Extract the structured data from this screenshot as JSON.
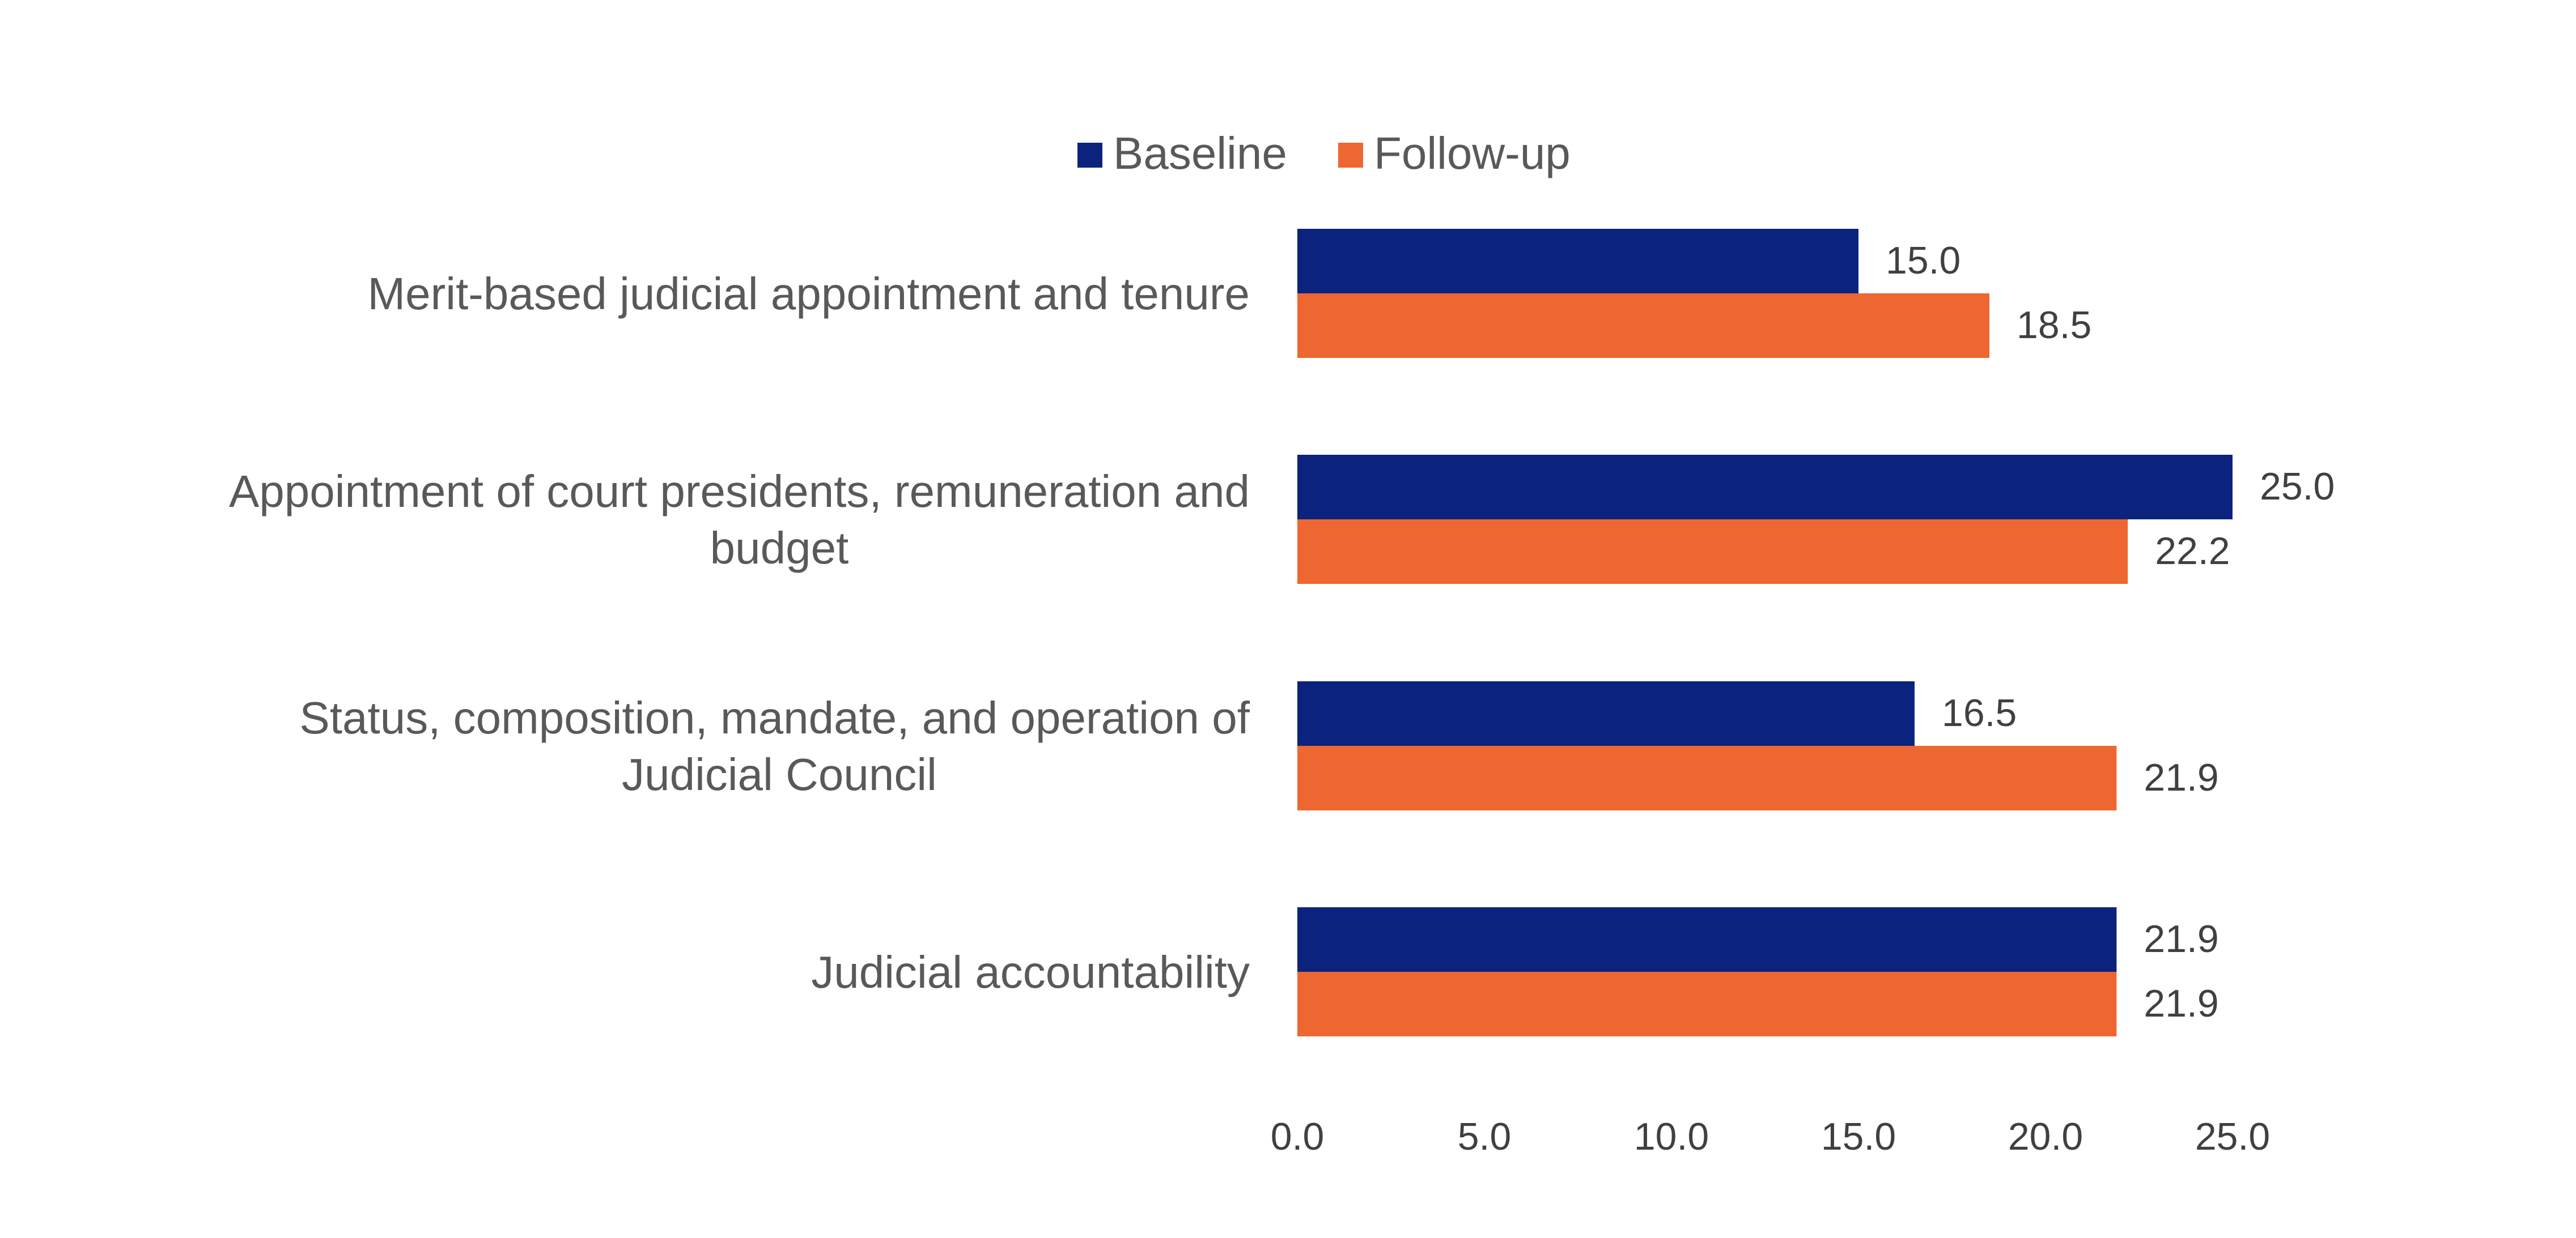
{
  "chart_data": {
    "type": "bar",
    "orientation": "horizontal",
    "categories": [
      [
        "Merit-based judicial appointment and tenure"
      ],
      [
        "Appointment of court presidents, remuneration and",
        "budget"
      ],
      [
        "Status, composition, mandate, and operation of",
        "Judicial Council"
      ],
      [
        "Judicial accountability"
      ]
    ],
    "series": [
      {
        "name": "Baseline",
        "color": "#0B237D",
        "values": [
          15.0,
          25.0,
          16.5,
          21.9
        ]
      },
      {
        "name": "Follow-up",
        "color": "#EE6630",
        "values": [
          18.5,
          22.2,
          21.9,
          21.9
        ]
      }
    ],
    "xlim": [
      0,
      25
    ],
    "xticks": [
      0,
      5,
      10,
      15,
      20,
      25
    ],
    "tick_labels": [
      "0.0",
      "5.0",
      "10.0",
      "15.0",
      "20.0",
      "25.0"
    ],
    "value_labels": [
      [
        "15.0",
        "25.0",
        "16.5",
        "21.9"
      ],
      [
        "18.5",
        "22.2",
        "21.9",
        "21.9"
      ]
    ],
    "legend_position": "top",
    "grid": false,
    "title": "",
    "xlabel": "",
    "ylabel": ""
  }
}
